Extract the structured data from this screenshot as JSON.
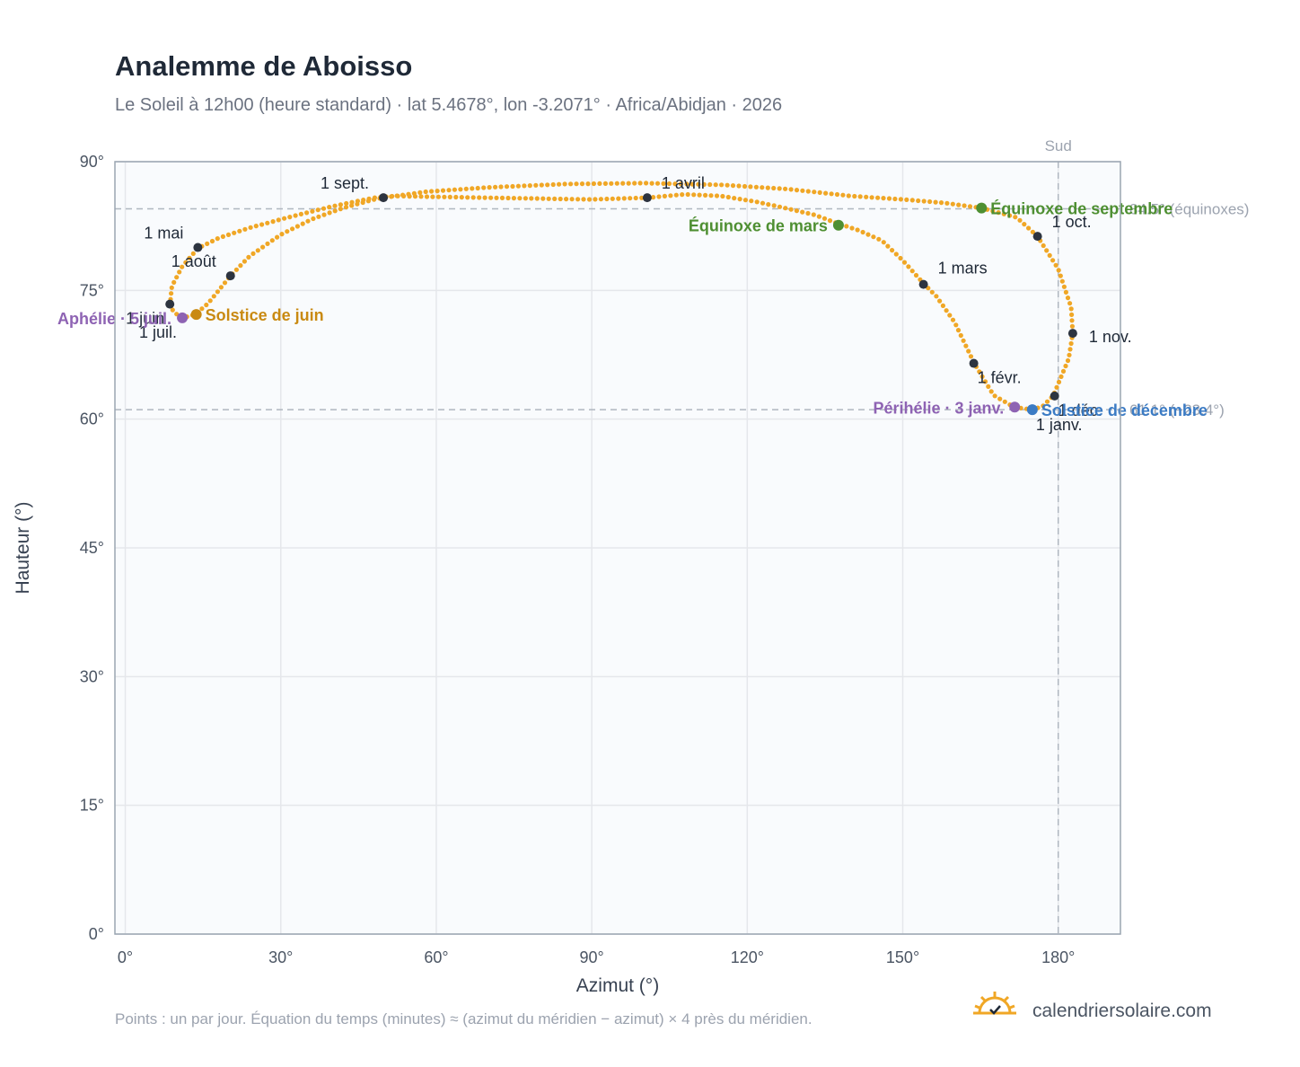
{
  "header": {
    "title": "Analemme de Aboisso",
    "subtitle": "Le Soleil à 12h00 (heure standard) · lat 5.4678°, lon -3.2071° · Africa/Abidjan · 2026"
  },
  "footer": {
    "note": "Points : un par jour. Équation du temps (minutes) ≈ (azimut du méridien − azimut) × 4 près du méridien.",
    "brand": "calendriersolaire.com"
  },
  "colors": {
    "curve": "#f0a726",
    "month_marker": "#2d3440",
    "equinox": "#4e8f32",
    "june_solstice": "#c98a12",
    "december_solstice": "#3b7bc4",
    "apsis": "#8e63b3",
    "grid": "#e5e7eb",
    "plot_bg": "#f9fbfd",
    "frame": "#9aa5b1",
    "reference": "#b0b7c0"
  },
  "chart_data": {
    "type": "scatter",
    "title": "Analemme de Aboisso",
    "xlabel": "Azimut (°)",
    "ylabel": "Hauteur (°)",
    "xlim": [
      -2,
      192
    ],
    "ylim": [
      0,
      90
    ],
    "xticks": [
      0,
      30,
      60,
      90,
      120,
      150,
      180
    ],
    "yticks": [
      0,
      15,
      30,
      45,
      60,
      75,
      90
    ],
    "tick_suffix": "°",
    "grid": true,
    "meridian": {
      "label": "Sud",
      "x": 180
    },
    "reference_lines": [
      {
        "y": 84.5,
        "label": "84.5° (équinoxes)"
      },
      {
        "y": 61.1,
        "label": "61.1° (−23.4°)"
      }
    ],
    "path": [
      [
        175.0,
        61.1
      ],
      [
        171.5,
        61.4
      ],
      [
        167.5,
        62.8
      ],
      [
        163.8,
        66.5
      ],
      [
        160.0,
        71.3
      ],
      [
        156.5,
        74.3
      ],
      [
        154.2,
        75.7
      ],
      [
        150.0,
        78.5
      ],
      [
        146.0,
        80.8
      ],
      [
        141.5,
        82.0
      ],
      [
        137.5,
        82.8
      ],
      [
        133.0,
        83.8
      ],
      [
        128.0,
        84.5
      ],
      [
        122.0,
        85.3
      ],
      [
        115.0,
        86.0
      ],
      [
        108.0,
        86.2
      ],
      [
        100.8,
        85.8
      ],
      [
        90.0,
        85.6
      ],
      [
        80.0,
        85.7
      ],
      [
        70.0,
        85.8
      ],
      [
        60.0,
        85.9
      ],
      [
        52.0,
        86.0
      ],
      [
        48.0,
        85.8
      ],
      [
        40.0,
        84.8
      ],
      [
        32.0,
        83.6
      ],
      [
        24.0,
        82.3
      ],
      [
        18.0,
        81.1
      ],
      [
        14.0,
        79.9
      ],
      [
        11.0,
        77.8
      ],
      [
        9.0,
        75.5
      ],
      [
        8.6,
        73.2
      ],
      [
        9.5,
        72.4
      ],
      [
        11.0,
        71.8
      ],
      [
        13.5,
        72.2
      ],
      [
        16.0,
        73.5
      ],
      [
        20.3,
        76.7
      ],
      [
        24.0,
        79.0
      ],
      [
        30.0,
        81.5
      ],
      [
        36.0,
        83.3
      ],
      [
        42.0,
        84.6
      ],
      [
        48.0,
        85.6
      ],
      [
        49.8,
        85.8
      ],
      [
        58.0,
        86.5
      ],
      [
        70.0,
        87.0
      ],
      [
        85.0,
        87.4
      ],
      [
        100.0,
        87.5
      ],
      [
        115.0,
        87.3
      ],
      [
        128.0,
        86.8
      ],
      [
        140.0,
        86.0
      ],
      [
        150.0,
        85.6
      ],
      [
        158.0,
        85.2
      ],
      [
        165.2,
        84.6
      ],
      [
        172.0,
        83.5
      ],
      [
        176.0,
        81.3
      ],
      [
        180.0,
        77.5
      ],
      [
        182.5,
        73.0
      ],
      [
        182.8,
        70.0
      ],
      [
        182.0,
        67.0
      ],
      [
        179.0,
        62.7
      ],
      [
        177.0,
        61.5
      ],
      [
        175.0,
        61.1
      ]
    ],
    "month_markers": [
      {
        "label": "1 janv.",
        "az": 175.0,
        "alt": 61.0,
        "anchor": "below-right"
      },
      {
        "label": "1 févr.",
        "az": 163.7,
        "alt": 66.5,
        "anchor": "below-right"
      },
      {
        "label": "1 mars",
        "az": 154.0,
        "alt": 75.7,
        "anchor": "right-up"
      },
      {
        "label": "1 avril",
        "az": 100.7,
        "alt": 85.8,
        "anchor": "above-right"
      },
      {
        "label": "1 mai",
        "az": 14.0,
        "alt": 80.0,
        "anchor": "above-left"
      },
      {
        "label": "1 juin",
        "az": 8.6,
        "alt": 73.4,
        "anchor": "below-left"
      },
      {
        "label": "1 juil.",
        "az": 11.0,
        "alt": 71.8,
        "anchor": "below-left"
      },
      {
        "label": "1 août",
        "az": 20.3,
        "alt": 76.7,
        "anchor": "above-left"
      },
      {
        "label": "1 sept.",
        "az": 49.8,
        "alt": 85.8,
        "anchor": "above-left"
      },
      {
        "label": "1 oct.",
        "az": 176.0,
        "alt": 81.3,
        "anchor": "above-right"
      },
      {
        "label": "1 nov.",
        "az": 182.8,
        "alt": 70.0,
        "anchor": "right"
      },
      {
        "label": "1 déc.",
        "az": 179.3,
        "alt": 62.7,
        "anchor": "below-right"
      }
    ],
    "events": [
      {
        "label": "Équinoxe de mars",
        "az": 137.6,
        "alt": 82.6,
        "color": "#4e8f32",
        "anchor": "left"
      },
      {
        "label": "Équinoxe de septembre",
        "az": 165.2,
        "alt": 84.6,
        "color": "#4e8f32",
        "anchor": "right"
      },
      {
        "label": "Solstice de juin",
        "az": 13.7,
        "alt": 72.2,
        "color": "#c98a12",
        "anchor": "right"
      },
      {
        "label": "Solstice de décembre",
        "az": 175.0,
        "alt": 61.1,
        "color": "#3b7bc4",
        "anchor": "right"
      },
      {
        "label": "Aphélie · 5 juil.",
        "az": 11.0,
        "alt": 71.8,
        "color": "#8e63b3",
        "anchor": "left"
      },
      {
        "label": "Périhélie · 3 janv.",
        "az": 171.6,
        "alt": 61.4,
        "color": "#8e63b3",
        "anchor": "left"
      }
    ]
  }
}
